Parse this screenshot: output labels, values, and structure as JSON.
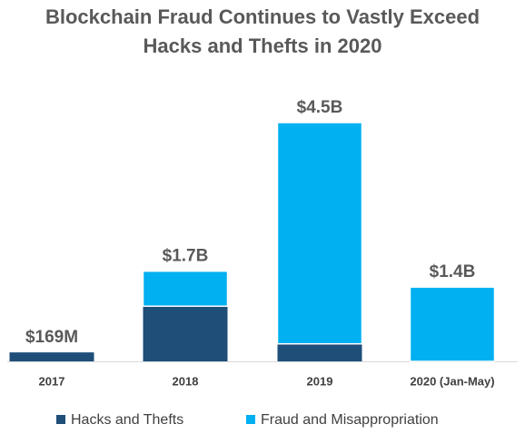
{
  "chart_data": {
    "type": "stacked_bar",
    "title": [
      "Blockchain Fraud Continues to Vastly Exceed",
      "Hacks and Thefts in 2020"
    ],
    "categories": [
      "2017",
      "2018",
      "2019",
      "2020 (Jan-May)"
    ],
    "series": [
      {
        "name": "Hacks and Thefts",
        "color": "#1f4e79",
        "values": [
          169000000,
          1040000000,
          330000000,
          0
        ]
      },
      {
        "name": "Fraud and Misappropriation",
        "color": "#00b0f0",
        "values": [
          0,
          660000000,
          4170000000,
          1400000000
        ]
      }
    ],
    "totals": [
      169000000,
      1700000000,
      4500000000,
      1400000000
    ],
    "value_labels": [
      "$169M",
      "$1.7B",
      "$4.5B",
      "$1.4B"
    ],
    "ylim": [
      0,
      4500000000
    ],
    "legend": "bottom"
  }
}
